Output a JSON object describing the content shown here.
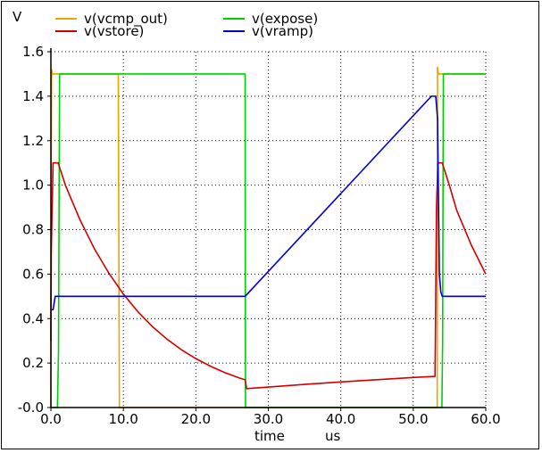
{
  "chart_data": {
    "type": "line",
    "ylabel": "V",
    "xlabel": "time",
    "xunit": "us",
    "xlim": [
      0,
      60
    ],
    "ylim": [
      0,
      1.6
    ],
    "xticks": [
      0,
      10,
      20,
      30,
      40,
      50,
      60
    ],
    "xtick_labels": [
      "0.0",
      "10.0",
      "20.0",
      "30.0",
      "40.0",
      "50.0",
      "60.0"
    ],
    "yticks": [
      0,
      0.2,
      0.4,
      0.6,
      0.8,
      1.0,
      1.2,
      1.4,
      1.6
    ],
    "ytick_labels": [
      "-0.0",
      "0.2",
      "0.4",
      "0.6",
      "0.8",
      "1.0",
      "1.2",
      "1.4",
      "1.6"
    ],
    "grid": true,
    "legend_position": "top",
    "series": [
      {
        "name": "v(vcmp_out)",
        "color": "#f0a000",
        "x": [
          0,
          0.05,
          0.1,
          0.2,
          9.3,
          9.3,
          9.45,
          53.3,
          53.35,
          53.45,
          53.7,
          60
        ],
        "y": [
          0,
          1.15,
          1.52,
          1.5,
          1.5,
          1.45,
          0,
          0,
          1.53,
          1.5,
          1.5,
          1.5
        ]
      },
      {
        "name": "v(expose)",
        "color": "#00d000",
        "x": [
          0,
          0.9,
          1.05,
          1.2,
          26.8,
          26.85,
          53.95,
          54.05,
          54.15,
          60
        ],
        "y": [
          0,
          0,
          0.25,
          1.5,
          1.5,
          0,
          0,
          0.3,
          1.5,
          1.5
        ]
      },
      {
        "name": "v(vstore)",
        "color": "#d40000",
        "x": [
          0,
          0.05,
          0.3,
          1,
          2,
          4,
          6,
          8,
          10,
          12,
          14,
          16,
          18,
          20,
          22,
          24,
          26,
          26.8,
          27,
          30,
          35,
          40,
          45,
          50,
          53,
          53.05,
          53.2,
          53.4,
          54,
          55,
          56,
          58,
          60
        ],
        "y": [
          0.3,
          0.7,
          1.1,
          1.1,
          1.0,
          0.845,
          0.714,
          0.604,
          0.51,
          0.431,
          0.364,
          0.308,
          0.26,
          0.22,
          0.186,
          0.157,
          0.133,
          0.125,
          0.085,
          0.092,
          0.104,
          0.115,
          0.125,
          0.135,
          0.14,
          0.3,
          0.9,
          1.1,
          1.1,
          0.997,
          0.886,
          0.731,
          0.6
        ]
      },
      {
        "name": "v(vramp)",
        "color": "#0000d0",
        "x": [
          0,
          0.3,
          0.6,
          0.9,
          26.8,
          52.5,
          53.1,
          53.35,
          53.6,
          53.8,
          54,
          60
        ],
        "y": [
          0.44,
          0.44,
          0.5,
          0.5,
          0.5,
          1.4,
          1.4,
          1.3,
          0.6,
          0.52,
          0.5,
          0.5
        ]
      }
    ]
  }
}
